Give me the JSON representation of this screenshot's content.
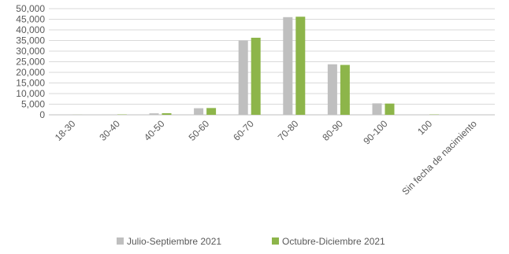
{
  "chart_data": {
    "type": "bar",
    "categories": [
      "18-30",
      "30-40",
      "40-50",
      "50-60",
      "60-70",
      "70-80",
      "80-90",
      "90-100",
      "100",
      "Sin fecha de nacimiento"
    ],
    "series": [
      {
        "name": "Julio-Septiembre 2021",
        "color": "#bfbfbf",
        "values": [
          30,
          150,
          700,
          3100,
          35000,
          46000,
          23800,
          5400,
          150,
          0
        ]
      },
      {
        "name": "Octubre-Diciembre 2021",
        "color": "#8db54a",
        "values": [
          30,
          160,
          750,
          3200,
          36300,
          46200,
          23500,
          5300,
          150,
          0
        ]
      }
    ],
    "yticks": [
      "0",
      "5,000",
      "10,000",
      "15,000",
      "20,000",
      "25,000",
      "30,000",
      "35,000",
      "40,000",
      "45,000",
      "50,000"
    ],
    "ylim": [
      0,
      50000
    ],
    "grid": true,
    "legend_position": "bottom"
  }
}
